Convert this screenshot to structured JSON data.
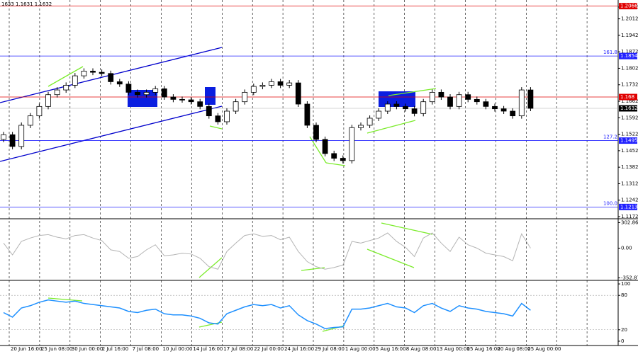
{
  "chart_data": [
    {
      "type": "candlestick",
      "header": "1633 1.1631 1.1632",
      "open": [
        1.15,
        1.152,
        1.147,
        1.156,
        1.16,
        1.164,
        1.169,
        1.171,
        1.173,
        1.177,
        1.179,
        1.1785,
        1.178,
        1.1745,
        1.1735,
        1.17,
        1.169,
        1.17,
        1.1715,
        1.168,
        1.167,
        1.1668,
        1.166,
        1.164,
        1.16,
        1.1575,
        1.162,
        1.166,
        1.17,
        1.1725,
        1.173,
        1.1745,
        1.173,
        1.174,
        1.165,
        1.156,
        1.15,
        1.144,
        1.142,
        1.141,
        1.155,
        1.156,
        1.159,
        1.162,
        1.165,
        1.164,
        1.163,
        1.161,
        1.166,
        1.17,
        1.168,
        1.164,
        1.169,
        1.167,
        1.166,
        1.164,
        1.163,
        1.162,
        1.16,
        1.171
      ],
      "high": [
        1.1532,
        1.1532,
        1.1572,
        1.1612,
        1.1652,
        1.1702,
        1.1722,
        1.1742,
        1.1782,
        1.1802,
        1.1802,
        1.1797,
        1.1792,
        1.1757,
        1.1747,
        1.1712,
        1.1712,
        1.1727,
        1.1727,
        1.1692,
        1.1682,
        1.168,
        1.1672,
        1.1652,
        1.1612,
        1.1632,
        1.1672,
        1.1712,
        1.1737,
        1.1742,
        1.1757,
        1.1757,
        1.1752,
        1.1752,
        1.1662,
        1.1572,
        1.1512,
        1.1452,
        1.1432,
        1.1562,
        1.1572,
        1.1602,
        1.1632,
        1.1662,
        1.1662,
        1.1652,
        1.1642,
        1.1672,
        1.1712,
        1.1712,
        1.1692,
        1.1702,
        1.1702,
        1.1682,
        1.1672,
        1.1652,
        1.1642,
        1.1632,
        1.1722,
        1.1722
      ],
      "low": [
        1.1488,
        1.1458,
        1.1458,
        1.1548,
        1.1588,
        1.1628,
        1.1678,
        1.1698,
        1.1718,
        1.1758,
        1.1773,
        1.1768,
        1.1733,
        1.1723,
        1.1688,
        1.1678,
        1.1678,
        1.1688,
        1.1668,
        1.1658,
        1.1656,
        1.1648,
        1.1628,
        1.1588,
        1.1563,
        1.1563,
        1.1608,
        1.1648,
        1.1688,
        1.1713,
        1.1718,
        1.1718,
        1.1718,
        1.1638,
        1.1548,
        1.1488,
        1.1428,
        1.1408,
        1.1398,
        1.1398,
        1.1538,
        1.1548,
        1.1578,
        1.1608,
        1.1628,
        1.1618,
        1.1598,
        1.1598,
        1.1648,
        1.1668,
        1.1628,
        1.1628,
        1.1658,
        1.1648,
        1.1628,
        1.1618,
        1.1608,
        1.1588,
        1.1588,
        1.162
      ],
      "close": [
        1.152,
        1.147,
        1.156,
        1.16,
        1.164,
        1.169,
        1.171,
        1.173,
        1.177,
        1.179,
        1.1785,
        1.178,
        1.1745,
        1.1735,
        1.17,
        1.169,
        1.17,
        1.1715,
        1.168,
        1.167,
        1.1668,
        1.166,
        1.164,
        1.16,
        1.1575,
        1.162,
        1.166,
        1.17,
        1.1725,
        1.173,
        1.1745,
        1.173,
        1.174,
        1.165,
        1.156,
        1.15,
        1.144,
        1.142,
        1.141,
        1.155,
        1.156,
        1.159,
        1.162,
        1.165,
        1.164,
        1.163,
        1.161,
        1.166,
        1.17,
        1.168,
        1.164,
        1.169,
        1.167,
        1.166,
        1.164,
        1.163,
        1.162,
        1.16,
        1.171,
        1.1632
      ],
      "ylim": [
        1.1166,
        1.2092
      ],
      "yticks": [
        1.2062,
        1.2012,
        1.1942,
        1.1872,
        1.1802,
        1.1732,
        1.1662,
        1.1592,
        1.1522,
        1.1452,
        1.1382,
        1.1312,
        1.1242,
        1.1172
      ],
      "levels": [
        {
          "value": 1.2066,
          "color": "#e00000"
        },
        {
          "value": 1.1854,
          "color": "#2020ff",
          "label": "161.8"
        },
        {
          "value": 1.168,
          "color": "#e00000"
        },
        {
          "value": 1.1495,
          "color": "#2020ff",
          "label": "127.2"
        },
        {
          "value": 1.1213,
          "color": "#2020ff",
          "label": "100.0"
        }
      ],
      "last_price": 1.1632,
      "x_tick_labels": [
        "20 Jun 16:00",
        "25 Jun 08:00",
        "30 Jun 00:00",
        "2 Jul 16:00",
        "7 Jul 08:00",
        "10 Jul 00:00",
        "14 Jul 16:00",
        "17 Jul 08:00",
        "22 Jul 00:00",
        "24 Jul 16:00",
        "29 Jul 08:00",
        "1 Aug 00:00",
        "5 Aug 16:00",
        "8 Aug 08:00",
        "13 Aug 00:00",
        "15 Aug 16:00",
        "20 Aug 08:00",
        "25 Aug 00:00"
      ]
    },
    {
      "type": "line",
      "color": "#b4b4b4",
      "values": [
        60,
        -80,
        80,
        120,
        150,
        160,
        130,
        110,
        150,
        160,
        120,
        90,
        -20,
        -40,
        -120,
        -100,
        -20,
        40,
        -90,
        -80,
        -60,
        -70,
        -120,
        -220,
        -250,
        -40,
        60,
        150,
        170,
        140,
        150,
        100,
        130,
        -40,
        -160,
        -220,
        -250,
        -230,
        -200,
        80,
        60,
        90,
        120,
        180,
        80,
        10,
        -100,
        120,
        180,
        60,
        -40,
        130,
        40,
        0,
        -60,
        -80,
        -100,
        -150,
        170,
        0
      ],
      "ylim": [
        -374,
        340
      ],
      "yticks": [
        302.8654,
        {
          "value": 0,
          "label": "0.00"
        },
        -352.872
      ]
    },
    {
      "type": "line",
      "color": "#1e90ff",
      "values": [
        50,
        42,
        58,
        62,
        68,
        72,
        70,
        68,
        70,
        66,
        64,
        62,
        60,
        58,
        52,
        50,
        54,
        56,
        48,
        46,
        46,
        44,
        40,
        32,
        30,
        48,
        54,
        60,
        64,
        62,
        64,
        58,
        62,
        46,
        36,
        30,
        22,
        24,
        25,
        56,
        56,
        58,
        62,
        66,
        60,
        58,
        50,
        62,
        66,
        58,
        52,
        62,
        58,
        56,
        52,
        50,
        48,
        44,
        66,
        54
      ],
      "ylim": [
        -7.5,
        105
      ],
      "yticks": [
        100,
        80,
        20,
        0
      ],
      "grid_levels": [
        80,
        20
      ]
    }
  ]
}
